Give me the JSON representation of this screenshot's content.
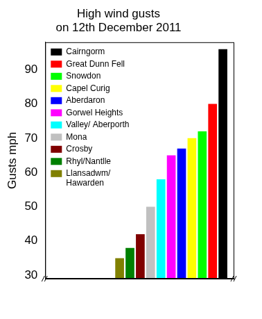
{
  "chart_data": {
    "type": "bar",
    "title": [
      "High wind gusts",
      "on 12th December 2011"
    ],
    "y_label": "Gusts mph",
    "categories": [
      "Llansadwm/ Hawarden",
      "Rhyl/Nantlle",
      "Crosby",
      "Mona",
      "Valley/ Aberporth",
      "Gorwel Heights",
      "Aberdaron",
      "Capel Curig",
      "Snowdon",
      "Great Dunn Fell",
      "Cairngorm"
    ],
    "values": [
      35,
      38,
      42,
      50,
      58,
      65,
      67,
      70,
      72,
      80,
      96
    ],
    "colors": [
      "#808000",
      "#008000",
      "#800000",
      "#c0c0c0",
      "#00ffff",
      "#ff00ff",
      "#0000ff",
      "#ffff00",
      "#00ff00",
      "#ff0000",
      "#000000"
    ],
    "ylim": [
      29,
      98
    ],
    "yticks": [
      30,
      40,
      50,
      60,
      70,
      80,
      90
    ],
    "grid": false,
    "legend": "top-left",
    "tick_labels": "y"
  }
}
